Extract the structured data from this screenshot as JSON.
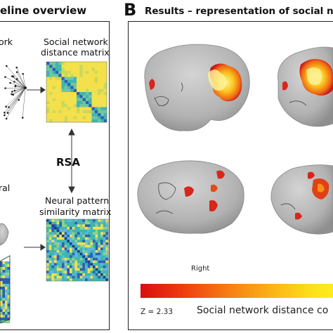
{
  "panel_a": {
    "title": "eline overview",
    "network_fragment": "ork",
    "social_matrix_label_line1": "Social network",
    "social_matrix_label_line2": "distance matrix",
    "rsa": "RSA",
    "neural_fragment": "ral",
    "neural_matrix_label_line1": "Neural pattern",
    "neural_matrix_label_line2": "similarity matrix"
  },
  "panel_b": {
    "letter": "B",
    "title": "Results – representation of social ne",
    "hemisphere_label": "Right",
    "z_threshold": "Z = 2.33",
    "colorbar_label": "Social network distance co"
  },
  "colors": {
    "brain": "#b9b9b9",
    "activation_red": "#d4261a",
    "activation_orange": "#f2871a",
    "activation_yellow": "#fde33a",
    "matrix_teal": "#3fb5b0",
    "matrix_yellow": "#f4e04a",
    "matrix_blue": "#2d5fb3"
  }
}
